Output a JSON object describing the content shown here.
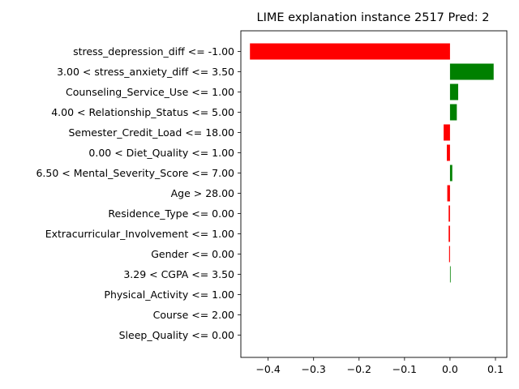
{
  "chart_data": {
    "type": "bar",
    "orientation": "horizontal",
    "title": "LIME explanation instance 2517 Pred: 2",
    "xlabel": "",
    "ylabel": "",
    "xlim": [
      -0.46,
      0.125
    ],
    "xticks": [
      -0.4,
      -0.3,
      -0.2,
      -0.1,
      0.0,
      0.1
    ],
    "xtick_labels": [
      "−0.4",
      "−0.3",
      "−0.2",
      "−0.1",
      "0.0",
      "0.1"
    ],
    "grid": false,
    "colors": {
      "positive": "#008000",
      "negative": "#ff0000"
    },
    "categories": [
      "stress_depression_diff <= -1.00",
      "3.00 < stress_anxiety_diff <= 3.50",
      "Counseling_Service_Use <= 1.00",
      "4.00 < Relationship_Status <= 5.00",
      "Semester_Credit_Load <= 18.00",
      "0.00 < Diet_Quality <= 1.00",
      "6.50 < Mental_Severity_Score <= 7.00",
      "Age > 28.00",
      "Residence_Type <= 0.00",
      "Extracurricular_Involvement <= 1.00",
      "Gender <= 0.00",
      "3.29 < CGPA <= 3.50",
      "Physical_Activity <= 1.00",
      "Course <= 2.00",
      "Sleep_Quality <= 0.00"
    ],
    "values": [
      -0.44,
      0.096,
      0.018,
      0.015,
      -0.014,
      -0.007,
      0.005,
      -0.006,
      -0.003,
      -0.003,
      -0.002,
      0.001,
      0.0,
      0.0,
      0.0
    ]
  }
}
